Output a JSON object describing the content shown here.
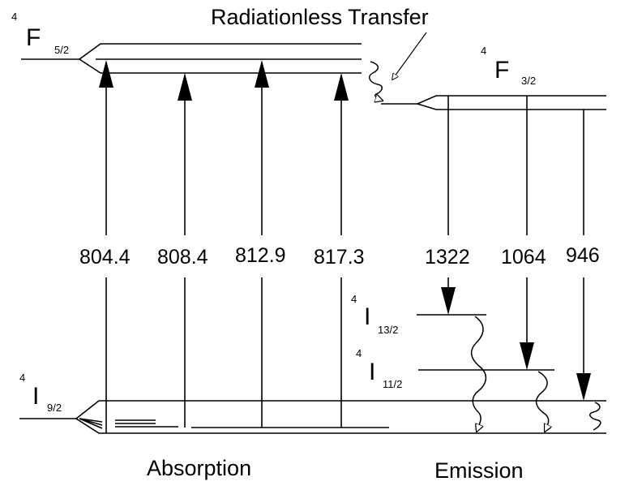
{
  "title": "Radiationless Transfer",
  "levels": {
    "f52": {
      "superscript": "4",
      "letter": "F",
      "subscript": "5/2"
    },
    "f32": {
      "superscript": "4",
      "letter": "F",
      "subscript": "3/2"
    },
    "i92": {
      "superscript": "4",
      "letter": "I",
      "subscript": "9/2"
    },
    "i132": {
      "superscript": "4",
      "letter": "I",
      "subscript": "13/2"
    },
    "i112": {
      "superscript": "4",
      "letter": "I",
      "subscript": "11/2"
    }
  },
  "absorption": {
    "label": "Absorption",
    "wavelengths": [
      "804.4",
      "808.4",
      "812.9",
      "817.3"
    ]
  },
  "emission": {
    "label": "Emission",
    "wavelengths": [
      "1322",
      "1064",
      "946"
    ]
  },
  "colors": {
    "line": "#000000",
    "background": "#ffffff"
  }
}
